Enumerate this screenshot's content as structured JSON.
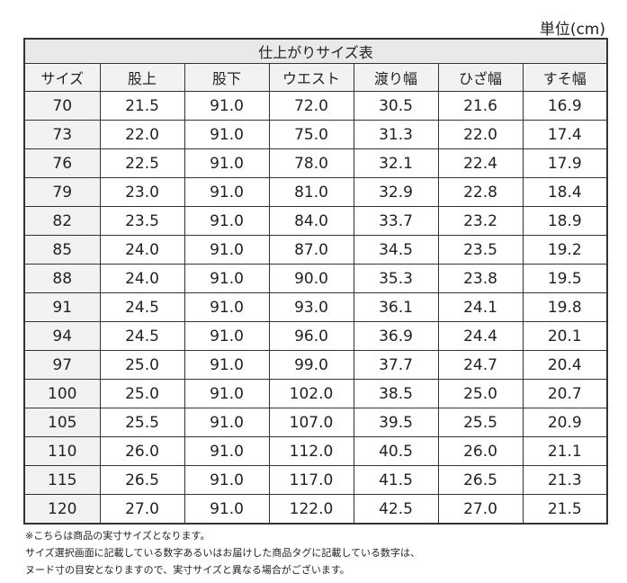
{
  "unit_label": "単位(cm)",
  "table_title": "仕上がりサイズ表",
  "columns": [
    "サイズ",
    "股上",
    "股下",
    "ウエスト",
    "渡り幅",
    "ひざ幅",
    "すそ幅"
  ],
  "rows": [
    [
      "70",
      "21.5",
      "91.0",
      "72.0",
      "30.5",
      "21.6",
      "16.9"
    ],
    [
      "73",
      "22.0",
      "91.0",
      "75.0",
      "31.3",
      "22.0",
      "17.4"
    ],
    [
      "76",
      "22.5",
      "91.0",
      "78.0",
      "32.1",
      "22.4",
      "17.9"
    ],
    [
      "79",
      "23.0",
      "91.0",
      "81.0",
      "32.9",
      "22.8",
      "18.4"
    ],
    [
      "82",
      "23.5",
      "91.0",
      "84.0",
      "33.7",
      "23.2",
      "18.9"
    ],
    [
      "85",
      "24.0",
      "91.0",
      "87.0",
      "34.5",
      "23.5",
      "19.2"
    ],
    [
      "88",
      "24.0",
      "91.0",
      "90.0",
      "35.3",
      "23.8",
      "19.5"
    ],
    [
      "91",
      "24.5",
      "91.0",
      "93.0",
      "36.1",
      "24.1",
      "19.8"
    ],
    [
      "94",
      "24.5",
      "91.0",
      "96.0",
      "36.9",
      "24.4",
      "20.1"
    ],
    [
      "97",
      "25.0",
      "91.0",
      "99.0",
      "37.7",
      "24.7",
      "20.4"
    ],
    [
      "100",
      "25.0",
      "91.0",
      "102.0",
      "38.5",
      "25.0",
      "20.7"
    ],
    [
      "105",
      "25.5",
      "91.0",
      "107.0",
      "39.5",
      "25.5",
      "20.9"
    ],
    [
      "110",
      "26.0",
      "91.0",
      "112.0",
      "40.5",
      "26.0",
      "21.1"
    ],
    [
      "115",
      "26.5",
      "91.0",
      "117.0",
      "41.5",
      "26.5",
      "21.3"
    ],
    [
      "120",
      "27.0",
      "91.0",
      "122.0",
      "42.5",
      "27.0",
      "21.5"
    ]
  ],
  "notes": [
    "※こちらは商品の実寸サイズとなります。",
    "サイズ選択画面に記載している数字あるいはお届けした商品タグに記載している数字は、",
    "ヌード寸の目安となりますので、実寸サイズと異なる場合がございます。"
  ]
}
